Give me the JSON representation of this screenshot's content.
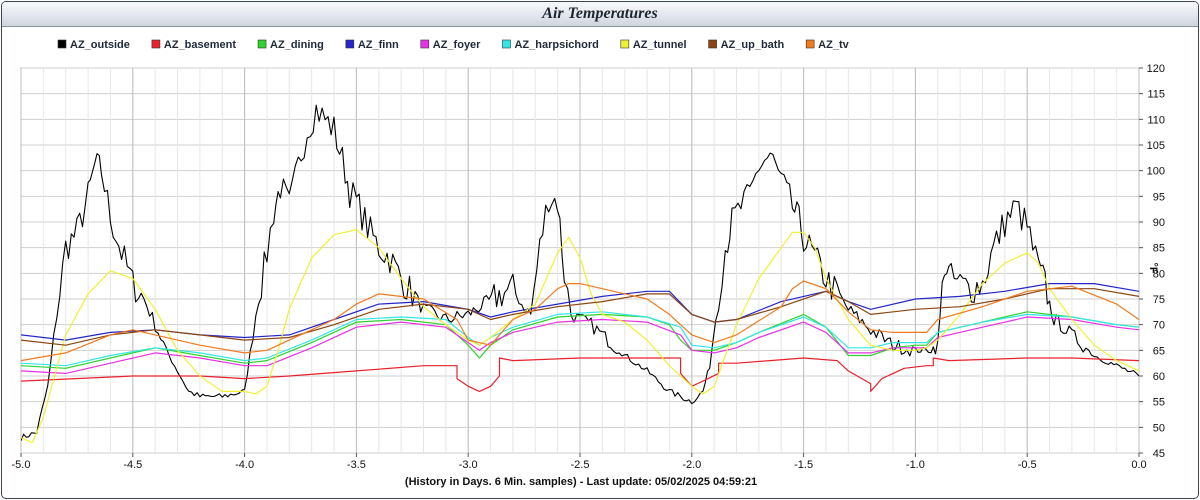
{
  "chart_data": {
    "type": "line",
    "title": "Air Temperatures",
    "xlabel": "(History in Days. 6 Min. samples) - Last update: 05/02/2025 04:59:21",
    "ylabel": "°F",
    "xlim": [
      -5.0,
      0.0
    ],
    "ylim": [
      45,
      120
    ],
    "x_ticks": [
      -5.0,
      -4.5,
      -4.0,
      -3.5,
      -3.0,
      -2.5,
      -2.0,
      -1.5,
      -1.0,
      -0.5,
      0.0
    ],
    "x_tick_labels": [
      "-5.0",
      "-4.5",
      "-4.0",
      "-3.5",
      "-3.0",
      "-2.5",
      "-2.0",
      "-1.5",
      "-1.0",
      "-0.5",
      "0.0"
    ],
    "y_ticks": [
      45,
      50,
      55,
      60,
      65,
      70,
      75,
      80,
      85,
      90,
      95,
      100,
      105,
      110,
      115,
      120
    ],
    "grid": true,
    "legend_position": "top",
    "series": [
      {
        "name": "AZ_outside",
        "color": "#000000",
        "noisy": true,
        "x": [
          -5.0,
          -4.93,
          -4.88,
          -4.84,
          -4.8,
          -4.75,
          -4.7,
          -4.67,
          -4.64,
          -4.6,
          -4.55,
          -4.5,
          -4.45,
          -4.4,
          -4.35,
          -4.3,
          -4.25,
          -4.2,
          -4.15,
          -4.1,
          -4.0,
          -3.95,
          -3.9,
          -3.87,
          -3.84,
          -3.8,
          -3.76,
          -3.72,
          -3.68,
          -3.64,
          -3.6,
          -3.55,
          -3.53,
          -3.5,
          -3.45,
          -3.4,
          -3.35,
          -3.3,
          -3.2,
          -3.1,
          -3.0,
          -2.93,
          -2.85,
          -2.8,
          -2.76,
          -2.72,
          -2.68,
          -2.64,
          -2.6,
          -2.57,
          -2.54,
          -2.5,
          -2.45,
          -2.4,
          -2.3,
          -2.2,
          -2.1,
          -2.0,
          -1.95,
          -1.92,
          -1.88,
          -1.85,
          -1.82,
          -1.78,
          -1.74,
          -1.7,
          -1.65,
          -1.6,
          -1.55,
          -1.52,
          -1.5,
          -1.45,
          -1.4,
          -1.35,
          -1.3,
          -1.2,
          -1.1,
          -1.0,
          -0.93,
          -0.9,
          -0.87,
          -0.84,
          -0.8,
          -0.75,
          -0.7,
          -0.65,
          -0.6,
          -0.55,
          -0.5,
          -0.45,
          -0.42,
          -0.4,
          -0.38,
          -0.35,
          -0.3,
          -0.25,
          -0.2,
          -0.1,
          0.0
        ],
        "y": [
          48,
          49,
          58,
          72,
          85,
          88,
          95,
          101,
          100,
          91,
          84,
          78,
          75,
          70,
          65,
          61,
          57,
          56,
          56,
          56,
          57,
          72,
          84,
          92,
          97,
          93,
          101,
          108,
          112,
          110,
          108,
          100,
          96,
          94,
          89,
          85,
          83,
          79,
          73,
          71,
          72,
          74,
          76,
          77,
          74,
          72,
          85,
          95,
          94,
          80,
          72,
          71,
          70,
          68,
          64,
          61,
          57,
          55,
          57,
          62,
          76,
          85,
          90,
          93,
          95,
          101,
          103,
          98,
          93,
          90,
          87,
          83,
          79,
          76,
          73,
          69,
          66,
          65,
          65,
          66,
          82,
          79,
          78,
          77,
          78,
          85,
          90,
          93,
          89,
          81,
          78,
          74,
          71,
          70,
          68,
          66,
          64,
          62,
          60
        ]
      },
      {
        "name": "AZ_basement",
        "color": "#e8212b",
        "noisy": false,
        "x": [
          -5.0,
          -4.5,
          -4.2,
          -4.0,
          -3.8,
          -3.5,
          -3.2,
          -3.05,
          -3.05,
          -3.0,
          -2.95,
          -2.9,
          -2.86,
          -2.86,
          -2.8,
          -2.5,
          -2.2,
          -2.05,
          -2.05,
          -2.0,
          -1.95,
          -1.88,
          -1.88,
          -1.8,
          -1.5,
          -1.35,
          -1.3,
          -1.2,
          -1.2,
          -1.15,
          -1.05,
          -0.95,
          -0.92,
          -0.92,
          -0.85,
          -0.5,
          -0.3,
          0.0
        ],
        "y": [
          59,
          60,
          60,
          59.5,
          60,
          61,
          62,
          62,
          59.5,
          58,
          57,
          58,
          60,
          63.5,
          63,
          63.5,
          63.5,
          63.5,
          60.5,
          58,
          59,
          60.5,
          62.5,
          62.5,
          63.5,
          63,
          61,
          58.5,
          57,
          59.5,
          61.5,
          62,
          62,
          63.5,
          63,
          63.5,
          63.5,
          63
        ]
      },
      {
        "name": "AZ_dining",
        "color": "#2fd22f",
        "noisy": false,
        "x": [
          -5.0,
          -4.8,
          -4.6,
          -4.4,
          -4.2,
          -4.0,
          -3.9,
          -3.7,
          -3.5,
          -3.3,
          -3.1,
          -3.0,
          -2.95,
          -2.9,
          -2.8,
          -2.6,
          -2.4,
          -2.2,
          -2.1,
          -2.05,
          -2.0,
          -1.9,
          -1.8,
          -1.7,
          -1.5,
          -1.4,
          -1.3,
          -1.2,
          -1.1,
          -1.0,
          -0.95,
          -0.9,
          -0.7,
          -0.5,
          -0.3,
          -0.1,
          0.0
        ],
        "y": [
          62,
          61.5,
          63.5,
          65.5,
          64,
          62.5,
          63,
          66.5,
          70.5,
          71,
          70,
          66,
          63.5,
          66,
          69,
          71.5,
          72,
          71.5,
          70,
          67,
          65,
          65,
          66.5,
          68.5,
          72,
          69.5,
          64,
          64,
          65.5,
          66,
          66,
          68.5,
          70.5,
          72.5,
          71.5,
          70,
          69.5
        ]
      },
      {
        "name": "AZ_finn",
        "color": "#2525c8",
        "noisy": false,
        "x": [
          -5.0,
          -4.8,
          -4.6,
          -4.4,
          -4.2,
          -4.0,
          -3.8,
          -3.6,
          -3.4,
          -3.2,
          -3.0,
          -2.9,
          -2.8,
          -2.6,
          -2.4,
          -2.2,
          -2.1,
          -2.0,
          -1.9,
          -1.8,
          -1.6,
          -1.4,
          -1.3,
          -1.2,
          -1.0,
          -0.8,
          -0.6,
          -0.4,
          -0.2,
          0.0
        ],
        "y": [
          68,
          67,
          68.5,
          69,
          68,
          67.5,
          68,
          71,
          74,
          74.5,
          73,
          71.5,
          72.5,
          74,
          75.5,
          76.5,
          76.5,
          72,
          70.5,
          71,
          74.5,
          76.5,
          74.5,
          73,
          75,
          75.5,
          76.5,
          78,
          78,
          76.5
        ]
      },
      {
        "name": "AZ_foyer",
        "color": "#e632e6",
        "noisy": false,
        "x": [
          -5.0,
          -4.8,
          -4.6,
          -4.4,
          -4.2,
          -4.0,
          -3.9,
          -3.7,
          -3.5,
          -3.3,
          -3.1,
          -3.0,
          -2.95,
          -2.9,
          -2.8,
          -2.6,
          -2.4,
          -2.2,
          -2.05,
          -2.0,
          -1.9,
          -1.8,
          -1.7,
          -1.5,
          -1.4,
          -1.3,
          -1.2,
          -1.1,
          -1.0,
          -0.95,
          -0.9,
          -0.7,
          -0.5,
          -0.3,
          -0.1,
          0.0
        ],
        "y": [
          61,
          60.5,
          62.5,
          64.5,
          63.5,
          62,
          62,
          65.5,
          69.5,
          70.5,
          69.5,
          66.5,
          65,
          66.5,
          68.5,
          70.5,
          71,
          70.5,
          68,
          65,
          64.5,
          65.5,
          67.5,
          70.5,
          68.5,
          64.5,
          64.5,
          65.5,
          65.5,
          65.5,
          67.5,
          69.5,
          71.5,
          71,
          69.5,
          69
        ]
      },
      {
        "name": "AZ_harpsichord",
        "color": "#33e6e6",
        "noisy": false,
        "x": [
          -5.0,
          -4.8,
          -4.6,
          -4.4,
          -4.2,
          -4.0,
          -3.9,
          -3.7,
          -3.5,
          -3.3,
          -3.1,
          -3.0,
          -2.95,
          -2.9,
          -2.8,
          -2.6,
          -2.4,
          -2.2,
          -2.05,
          -2.0,
          -1.9,
          -1.8,
          -1.7,
          -1.5,
          -1.4,
          -1.3,
          -1.2,
          -1.1,
          -1.0,
          -0.95,
          -0.9,
          -0.7,
          -0.5,
          -0.3,
          -0.1,
          0.0
        ],
        "y": [
          62.5,
          62,
          64,
          65.5,
          64.5,
          63,
          63.5,
          67,
          71,
          71.5,
          71,
          67.5,
          66,
          67.5,
          69.5,
          72,
          72.5,
          71.5,
          69.5,
          66,
          65.5,
          66.5,
          68.5,
          71.5,
          69.5,
          65.5,
          65.5,
          66.5,
          66.5,
          66.5,
          68.5,
          70.5,
          72,
          71.5,
          70,
          69.5
        ]
      },
      {
        "name": "AZ_tunnel",
        "color": "#f0f033",
        "noisy": false,
        "x": [
          -5.0,
          -4.95,
          -4.9,
          -4.85,
          -4.8,
          -4.7,
          -4.6,
          -4.5,
          -4.4,
          -4.3,
          -4.2,
          -4.1,
          -4.0,
          -3.95,
          -3.9,
          -3.85,
          -3.8,
          -3.7,
          -3.6,
          -3.5,
          -3.4,
          -3.3,
          -3.2,
          -3.1,
          -3.0,
          -2.95,
          -2.9,
          -2.8,
          -2.7,
          -2.6,
          -2.55,
          -2.5,
          -2.45,
          -2.4,
          -2.3,
          -2.2,
          -2.1,
          -2.0,
          -1.95,
          -1.9,
          -1.85,
          -1.8,
          -1.7,
          -1.6,
          -1.55,
          -1.5,
          -1.45,
          -1.4,
          -1.3,
          -1.2,
          -1.1,
          -1.0,
          -0.95,
          -0.9,
          -0.8,
          -0.7,
          -0.6,
          -0.5,
          -0.45,
          -0.4,
          -0.3,
          -0.2,
          -0.1,
          0.0
        ],
        "y": [
          48,
          47,
          52,
          60,
          68,
          76,
          80.5,
          79,
          73,
          65,
          60,
          57,
          57,
          56.5,
          58,
          65,
          73,
          83,
          87.5,
          88.5,
          85,
          79,
          73.5,
          70,
          67,
          66,
          67.5,
          71,
          74,
          84,
          87,
          83,
          76,
          72,
          70.5,
          67,
          62,
          58,
          56.5,
          58,
          64,
          70,
          79,
          85,
          88,
          88,
          85,
          79,
          71,
          66,
          65,
          65,
          65.5,
          67,
          72,
          78,
          82,
          84,
          82,
          77,
          71,
          66,
          63,
          61
        ]
      },
      {
        "name": "AZ_up_bath",
        "color": "#8b4513",
        "noisy": false,
        "x": [
          -5.0,
          -4.8,
          -4.6,
          -4.4,
          -4.2,
          -4.0,
          -3.8,
          -3.6,
          -3.4,
          -3.2,
          -3.0,
          -2.9,
          -2.8,
          -2.6,
          -2.4,
          -2.2,
          -2.1,
          -2.0,
          -1.9,
          -1.8,
          -1.6,
          -1.4,
          -1.3,
          -1.2,
          -1.0,
          -0.8,
          -0.6,
          -0.4,
          -0.2,
          0.0
        ],
        "y": [
          67,
          66,
          68,
          69,
          68,
          67,
          67.5,
          70,
          73,
          74,
          73,
          71,
          72,
          73.5,
          74.5,
          76,
          76,
          72,
          70.5,
          71,
          73.5,
          76.5,
          74.5,
          72,
          73,
          73.5,
          75,
          77,
          77,
          75.5
        ]
      },
      {
        "name": "AZ_tv",
        "color": "#f07a20",
        "noisy": false,
        "x": [
          -5.0,
          -4.8,
          -4.6,
          -4.5,
          -4.4,
          -4.2,
          -4.0,
          -3.9,
          -3.8,
          -3.6,
          -3.5,
          -3.4,
          -3.2,
          -3.05,
          -3.0,
          -2.9,
          -2.8,
          -2.7,
          -2.6,
          -2.55,
          -2.5,
          -2.4,
          -2.2,
          -2.1,
          -2.05,
          -2.0,
          -1.9,
          -1.8,
          -1.6,
          -1.55,
          -1.5,
          -1.4,
          -1.3,
          -1.2,
          -1.1,
          -1.0,
          -0.95,
          -0.9,
          -0.7,
          -0.5,
          -0.3,
          -0.1,
          0.0
        ],
        "y": [
          63,
          64.5,
          68,
          69,
          68,
          66,
          64.5,
          65,
          67,
          71,
          74,
          76,
          75,
          71,
          67,
          66,
          71,
          73,
          77,
          78,
          78,
          77,
          75,
          72,
          70,
          68,
          66.5,
          68,
          73.5,
          77,
          78.5,
          77,
          72.5,
          69,
          68.5,
          68.5,
          68.5,
          71,
          73.5,
          76.5,
          77.5,
          74,
          71
        ]
      }
    ]
  }
}
